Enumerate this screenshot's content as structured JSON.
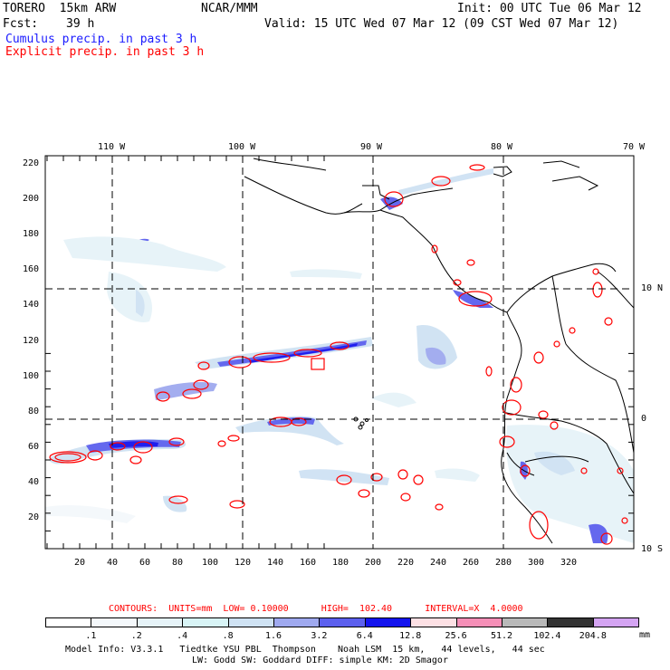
{
  "header": {
    "model": "TORERO  15km ARW",
    "org": "NCAR/MMM",
    "init": "Init: 00 UTC Tue 06 Mar 12",
    "fcst_label": "Fcst:",
    "fcst_value": "39 h",
    "valid": "Valid: 15 UTC Wed 07 Mar 12 (09 CST Wed 07 Mar 12)",
    "line_blue": "Cumulus precip. in past 3 h",
    "line_red": "Explicit precip. in past 3 h"
  },
  "lon_labels": [
    "110 W",
    "100 W",
    "90 W",
    "80 W",
    "70 W"
  ],
  "lat_labels": [
    "10 N",
    "0",
    "10 S"
  ],
  "y_ticks": [
    "220",
    "200",
    "180",
    "160",
    "140",
    "120",
    "100",
    "80",
    "60",
    "40",
    "20"
  ],
  "x_ticks": [
    "20",
    "40",
    "60",
    "80",
    "100",
    "120",
    "140",
    "160",
    "180",
    "200",
    "220",
    "240",
    "260",
    "280",
    "300",
    "320"
  ],
  "contours_line": "CONTOURS:  UNITS=mm  LOW= 0.10000      HIGH=  102.40      INTERVAL=X  4.0000",
  "legend": {
    "values": [
      ".1",
      ".2",
      ".4",
      ".8",
      "1.6",
      "3.2",
      "6.4",
      "12.8",
      "25.6",
      "51.2",
      "102.4",
      "204.8"
    ],
    "unit": "mm",
    "colors": [
      "#ffffff",
      "#f4f8fb",
      "#e6f3f8",
      "#d8f4f6",
      "#cfe2f3",
      "#9fa9ef",
      "#5c60ee",
      "#1414ee",
      "#fde0e4",
      "#f58fb7",
      "#b9b9b9",
      "#333333",
      "#d4a4f2"
    ]
  },
  "footer": {
    "line1": "Model Info: V3.3.1   Tiedtke YSU PBL  Thompson    Noah LSM  15 km,   44 levels,   44 sec",
    "line2": "LW: Godd SW: Goddard DIFF: simple KM: 2D Smagor"
  }
}
